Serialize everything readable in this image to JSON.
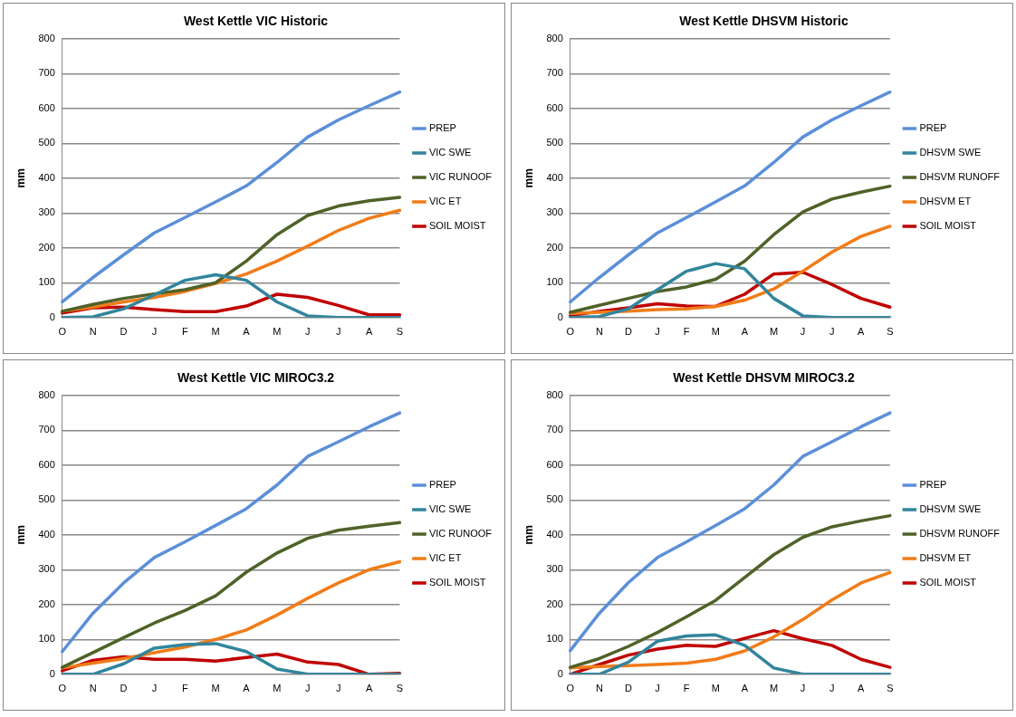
{
  "chart_data": [
    {
      "type": "line",
      "title": "West Kettle VIC Historic",
      "ylabel": "mm",
      "categories": [
        "O",
        "N",
        "D",
        "J",
        "F",
        "M",
        "A",
        "M",
        "J",
        "J",
        "A",
        "S"
      ],
      "ylim": [
        0,
        800
      ],
      "yticks": [
        0,
        100,
        200,
        300,
        400,
        500,
        600,
        700,
        800
      ],
      "grid": "y",
      "legend": "right",
      "marker": "none",
      "series": [
        {
          "name": "PREP",
          "color": "#5b8fd9",
          "values": [
            45,
            115,
            180,
            243,
            287,
            332,
            378,
            445,
            518,
            567,
            608,
            647
          ]
        },
        {
          "name": "VIC SWE",
          "color": "#31859c",
          "values": [
            0,
            2,
            25,
            65,
            107,
            123,
            107,
            45,
            5,
            0,
            0,
            0
          ]
        },
        {
          "name": "VIC RUNOOF",
          "color": "#4f6228",
          "values": [
            18,
            38,
            55,
            68,
            80,
            100,
            162,
            238,
            293,
            320,
            335,
            345
          ]
        },
        {
          "name": "VIC ET",
          "color": "#f07c18",
          "values": [
            18,
            30,
            45,
            58,
            75,
            98,
            125,
            162,
            205,
            250,
            285,
            308
          ]
        },
        {
          "name": "SOIL MOIST",
          "color": "#c00000",
          "values": [
            13,
            28,
            30,
            23,
            17,
            17,
            33,
            67,
            58,
            35,
            8,
            8
          ]
        }
      ]
    },
    {
      "type": "line",
      "title": "West Kettle DHSVM Historic",
      "ylabel": "mm",
      "categories": [
        "O",
        "N",
        "D",
        "J",
        "F",
        "M",
        "A",
        "M",
        "J",
        "J",
        "A",
        "S"
      ],
      "ylim": [
        0,
        800
      ],
      "yticks": [
        0,
        100,
        200,
        300,
        400,
        500,
        600,
        700,
        800
      ],
      "grid": "y",
      "legend": "right",
      "marker": "none",
      "series": [
        {
          "name": "PREP",
          "color": "#5b8fd9",
          "values": [
            45,
            115,
            180,
            243,
            287,
            332,
            378,
            445,
            518,
            567,
            608,
            647
          ]
        },
        {
          "name": "DHSVM SWE",
          "color": "#31859c",
          "values": [
            0,
            3,
            25,
            80,
            133,
            155,
            140,
            55,
            5,
            0,
            0,
            0
          ]
        },
        {
          "name": "DHSVM RUNOFF",
          "color": "#4f6228",
          "values": [
            15,
            35,
            55,
            75,
            88,
            110,
            162,
            238,
            303,
            340,
            360,
            377
          ]
        },
        {
          "name": "DHSVM ET",
          "color": "#f07c18",
          "values": [
            12,
            15,
            18,
            23,
            25,
            32,
            50,
            82,
            133,
            188,
            233,
            262
          ]
        },
        {
          "name": "SOIL MOIST",
          "color": "#c00000",
          "values": [
            5,
            18,
            28,
            40,
            33,
            32,
            67,
            125,
            130,
            95,
            55,
            30
          ]
        }
      ]
    },
    {
      "type": "line",
      "title": "West Kettle VIC MIROC3.2",
      "ylabel": "mm",
      "categories": [
        "O",
        "N",
        "D",
        "J",
        "F",
        "M",
        "A",
        "M",
        "J",
        "J",
        "A",
        "S"
      ],
      "ylim": [
        0,
        800
      ],
      "yticks": [
        0,
        100,
        200,
        300,
        400,
        500,
        600,
        700,
        800
      ],
      "grid": "y",
      "legend": "right",
      "marker": "none",
      "series": [
        {
          "name": "PREP",
          "color": "#5b8fd9",
          "values": [
            65,
            175,
            262,
            335,
            380,
            427,
            475,
            543,
            625,
            667,
            710,
            750
          ]
        },
        {
          "name": "VIC SWE",
          "color": "#31859c",
          "values": [
            0,
            0,
            30,
            75,
            85,
            88,
            65,
            15,
            0,
            0,
            0,
            0
          ]
        },
        {
          "name": "VIC RUNOOF",
          "color": "#4f6228",
          "values": [
            20,
            62,
            105,
            147,
            183,
            225,
            293,
            348,
            390,
            413,
            425,
            435
          ]
        },
        {
          "name": "VIC ET",
          "color": "#f07c18",
          "values": [
            18,
            32,
            45,
            62,
            78,
            100,
            127,
            170,
            218,
            262,
            300,
            323
          ]
        },
        {
          "name": "SOIL MOIST",
          "color": "#c00000",
          "values": [
            10,
            40,
            50,
            43,
            43,
            38,
            48,
            58,
            35,
            28,
            0,
            3
          ]
        }
      ]
    },
    {
      "type": "line",
      "title": "West Kettle DHSVM MIROC3.2",
      "ylabel": "mm",
      "categories": [
        "O",
        "N",
        "D",
        "J",
        "F",
        "M",
        "A",
        "M",
        "J",
        "J",
        "A",
        "S"
      ],
      "ylim": [
        0,
        800
      ],
      "yticks": [
        0,
        100,
        200,
        300,
        400,
        500,
        600,
        700,
        800
      ],
      "grid": "y",
      "legend": "right",
      "marker": "none",
      "series": [
        {
          "name": "PREP",
          "color": "#5b8fd9",
          "values": [
            68,
            175,
            263,
            335,
            380,
            427,
            475,
            543,
            625,
            667,
            710,
            750
          ]
        },
        {
          "name": "DHSVM SWE",
          "color": "#31859c",
          "values": [
            0,
            0,
            35,
            95,
            110,
            113,
            83,
            18,
            0,
            0,
            0,
            0
          ]
        },
        {
          "name": "DHSVM RUNOFF",
          "color": "#4f6228",
          "values": [
            20,
            45,
            80,
            120,
            165,
            212,
            278,
            343,
            393,
            423,
            440,
            455
          ]
        },
        {
          "name": "DHSVM ET",
          "color": "#f07c18",
          "values": [
            18,
            22,
            25,
            28,
            32,
            43,
            67,
            107,
            157,
            213,
            262,
            292
          ]
        },
        {
          "name": "SOIL MOIST",
          "color": "#c00000",
          "values": [
            0,
            28,
            55,
            72,
            83,
            80,
            103,
            125,
            102,
            83,
            43,
            20
          ]
        }
      ]
    }
  ]
}
